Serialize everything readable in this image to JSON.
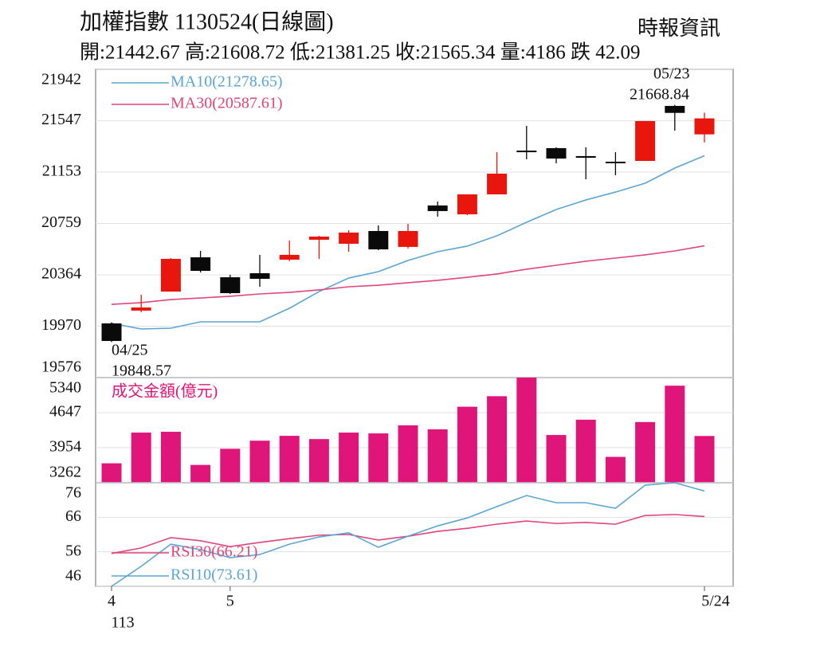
{
  "chart_data": [
    {
      "type": "candlestick",
      "title": "加權指數 1130524(日線圖)",
      "subtitle": "開:21442.67 高:21608.72 低:21381.25 收:21565.34 量:4186 跌 42.09",
      "source": "時報資訊",
      "open": [
        19992,
        20090,
        20236,
        20499,
        20346,
        20377,
        20481,
        20634,
        20603,
        20701,
        20579,
        20897,
        20829,
        20982,
        21318,
        21337,
        21276,
        21233,
        21239,
        21661,
        21442.67
      ],
      "high": [
        20000,
        20212,
        20493,
        20548,
        20365,
        20518,
        20628,
        20664,
        20707,
        20744,
        20756,
        20927,
        20982,
        21306,
        21508,
        21343,
        21343,
        21306,
        21545,
        21668.84,
        21608.72
      ],
      "low": [
        19848.57,
        20077,
        20236,
        20383,
        20218,
        20273,
        20469,
        20487,
        20542,
        20554,
        20567,
        20811,
        20823,
        20982,
        21251,
        21221,
        21098,
        21129,
        21239,
        21471,
        21381.25
      ],
      "close": [
        19857,
        20114,
        20487,
        20395,
        20224,
        20334,
        20518,
        20658,
        20689,
        20560,
        20701,
        20854,
        20982,
        21141,
        21306,
        21257,
        21263,
        21221,
        21545,
        21607.43,
        21565.34
      ],
      "up_color": "#e8160c",
      "down_color": "#0a0a0a",
      "series": [
        {
          "name": "MA10(21278.65)",
          "color": "#5aa6d4",
          "values": [
            19992,
            19949,
            19955,
            20004,
            20004,
            20004,
            20108,
            20236,
            20340,
            20389,
            20475,
            20542,
            20585,
            20664,
            20768,
            20866,
            20939,
            21000,
            21068,
            21184,
            21278.65
          ]
        },
        {
          "name": "MA30(20587.61)",
          "color": "#e0457b",
          "values": [
            20138,
            20151,
            20175,
            20187,
            20200,
            20218,
            20230,
            20249,
            20273,
            20285,
            20304,
            20322,
            20346,
            20371,
            20408,
            20438,
            20469,
            20493,
            20518,
            20548,
            20587.61
          ]
        }
      ],
      "annotations": [
        {
          "label": "04/25",
          "value": 19848.57
        },
        {
          "label": "05/23",
          "value": 21668.84
        }
      ],
      "ylim": [
        19576,
        21942
      ],
      "yticks": [
        19576,
        19970,
        20364,
        20759,
        21153,
        21547,
        21942
      ],
      "grid": true
    },
    {
      "type": "bar",
      "title": "成交金額(億元)",
      "values": [
        3646,
        4253,
        4269,
        3614,
        3933,
        4093,
        4189,
        4125,
        4253,
        4237,
        4397,
        4317,
        4764,
        4972,
        5340,
        4205,
        4508,
        3773,
        4461,
        5180,
        4186
      ],
      "color": "#e0157a",
      "ylim": [
        3262,
        5340
      ],
      "yticks": [
        3262,
        3954,
        4647,
        5340
      ],
      "grid": true
    },
    {
      "type": "line",
      "categories": [
        "4",
        null,
        null,
        null,
        "5",
        null,
        null,
        null,
        null,
        null,
        null,
        null,
        null,
        null,
        null,
        null,
        null,
        null,
        null,
        null,
        "5/24"
      ],
      "year_label": "113",
      "series": [
        {
          "name": "RSI30(66.21)",
          "color": "#e0457b",
          "values": [
            55.5,
            57.1,
            60.1,
            59.2,
            57.5,
            58.7,
            59.8,
            60.8,
            61.0,
            59.4,
            60.5,
            61.9,
            62.8,
            64.0,
            64.9,
            64.2,
            64.5,
            64.0,
            66.5,
            66.8,
            66.21
          ]
        },
        {
          "name": "RSI10(73.61)",
          "color": "#5aa6d4",
          "values": [
            46,
            51.8,
            58.2,
            56.6,
            54.3,
            55.2,
            58.2,
            60.3,
            61.5,
            57.3,
            60.5,
            63.5,
            65.8,
            69.1,
            72.3,
            70.2,
            70.2,
            68.6,
            75.3,
            76,
            73.61
          ]
        }
      ],
      "ylim": [
        46,
        76
      ],
      "yticks": [
        46,
        56,
        66,
        76
      ],
      "grid": true
    }
  ]
}
